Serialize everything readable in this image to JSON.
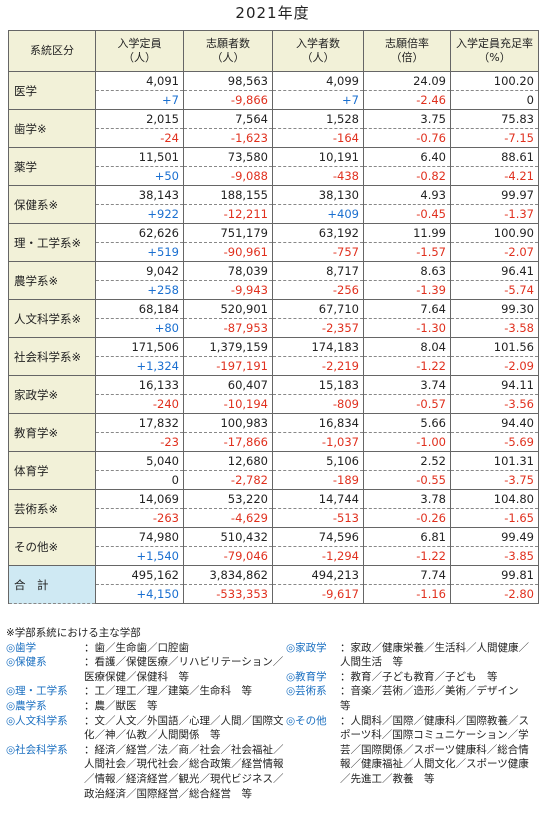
{
  "title": "2021年度",
  "table": {
    "header": [
      [
        "系統区分"
      ],
      [
        "入学定員",
        "（人）"
      ],
      [
        "志願者数",
        "（人）"
      ],
      [
        "入学者数",
        "（人）"
      ],
      [
        "志願倍率",
        "（倍）"
      ],
      [
        "入学定員充足率",
        "（%）"
      ]
    ],
    "rows": [
      {
        "label": "医学",
        "values": [
          "4,091",
          "98,563",
          "4,099",
          "24.09",
          "100.20"
        ],
        "changes": [
          "+7",
          "-9,866",
          "+7",
          "-2.46",
          "0"
        ]
      },
      {
        "label": "歯学※",
        "values": [
          "2,015",
          "7,564",
          "1,528",
          "3.75",
          "75.83"
        ],
        "changes": [
          "-24",
          "-1,623",
          "-164",
          "-0.76",
          "-7.15"
        ]
      },
      {
        "label": "薬学",
        "values": [
          "11,501",
          "73,580",
          "10,191",
          "6.40",
          "88.61"
        ],
        "changes": [
          "+50",
          "-9,088",
          "-438",
          "-0.82",
          "-4.21"
        ]
      },
      {
        "label": "保健系※",
        "values": [
          "38,143",
          "188,155",
          "38,130",
          "4.93",
          "99.97"
        ],
        "changes": [
          "+922",
          "-12,211",
          "+409",
          "-0.45",
          "-1.37"
        ]
      },
      {
        "label": "理・工学系※",
        "values": [
          "62,626",
          "751,179",
          "63,192",
          "11.99",
          "100.90"
        ],
        "changes": [
          "+519",
          "-90,961",
          "-757",
          "-1.57",
          "-2.07"
        ]
      },
      {
        "label": "農学系※",
        "values": [
          "9,042",
          "78,039",
          "8,717",
          "8.63",
          "96.41"
        ],
        "changes": [
          "+258",
          "-9,943",
          "-256",
          "-1.39",
          "-5.74"
        ]
      },
      {
        "label": "人文科学系※",
        "values": [
          "68,184",
          "520,901",
          "67,710",
          "7.64",
          "99.30"
        ],
        "changes": [
          "+80",
          "-87,953",
          "-2,357",
          "-1.30",
          "-3.58"
        ]
      },
      {
        "label": "社会科学系※",
        "values": [
          "171,506",
          "1,379,159",
          "174,183",
          "8.04",
          "101.56"
        ],
        "changes": [
          "+1,324",
          "-197,191",
          "-2,219",
          "-1.22",
          "-2.09"
        ]
      },
      {
        "label": "家政学※",
        "values": [
          "16,133",
          "60,407",
          "15,183",
          "3.74",
          "94.11"
        ],
        "changes": [
          "-240",
          "-10,194",
          "-809",
          "-0.57",
          "-3.56"
        ]
      },
      {
        "label": "教育学※",
        "values": [
          "17,832",
          "100,983",
          "16,834",
          "5.66",
          "94.40"
        ],
        "changes": [
          "-23",
          "-17,866",
          "-1,037",
          "-1.00",
          "-5.69"
        ]
      },
      {
        "label": "体育学",
        "values": [
          "5,040",
          "12,680",
          "5,106",
          "2.52",
          "101.31"
        ],
        "changes": [
          "0",
          "-2,782",
          "-189",
          "-0.55",
          "-3.75"
        ]
      },
      {
        "label": "芸術系※",
        "values": [
          "14,069",
          "53,220",
          "14,744",
          "3.78",
          "104.80"
        ],
        "changes": [
          "-263",
          "-4,629",
          "-513",
          "-0.26",
          "-1.65"
        ]
      },
      {
        "label": "その他※",
        "values": [
          "74,980",
          "510,432",
          "74,596",
          "6.81",
          "99.49"
        ],
        "changes": [
          "+1,540",
          "-79,046",
          "-1,294",
          "-1.22",
          "-3.85"
        ]
      },
      {
        "label": "合　計",
        "values": [
          "495,162",
          "3,834,862",
          "494,213",
          "7.74",
          "99.81"
        ],
        "changes": [
          "+4,150",
          "-533,353",
          "-9,617",
          "-1.16",
          "-2.80"
        ]
      }
    ]
  },
  "notes": {
    "heading": "※学部系統における主な学部",
    "left": [
      {
        "label": "◎歯学",
        "text": "：歯／生命歯／口腔歯"
      },
      {
        "label": "◎保健系",
        "text": "：看護／保健医療／リハビリテーション／医療保健／保健科　等"
      },
      {
        "label": "◎理・工学系",
        "text": "：工／理工／理／建築／生命科　等"
      },
      {
        "label": "◎農学系",
        "text": "：農／獣医　等"
      },
      {
        "label": "◎人文科学系",
        "text": "：文／人文／外国語／心理／人間／国際文化／神／仏教／人間関係　等"
      },
      {
        "label": "◎社会科学系",
        "text": "：経済／経営／法／商／社会／社会福祉／人間社会／現代社会／総合政策／経営情報／情報／経済経営／観光／現代ビジネス／政治経済／国際経営／総合経営　等"
      }
    ],
    "right": [
      {
        "label": "◎家政学",
        "text": "：家政／健康栄養／生活科／人間健康／人間生活　等"
      },
      {
        "label": "◎教育学",
        "text": "：教育／子ども教育／子ども　等"
      },
      {
        "label": "◎芸術系",
        "text": "：音楽／芸術／造形／美術／デザイン　等"
      },
      {
        "label": "◎その他",
        "text": "：人間科／国際／健康科／国際教養／スポーツ科／国際コミュニケーション／学芸／国際関係／スポーツ健康科／総合情報／健康福祉／人間文化／スポーツ健康／先進工／教養　等"
      }
    ]
  }
}
